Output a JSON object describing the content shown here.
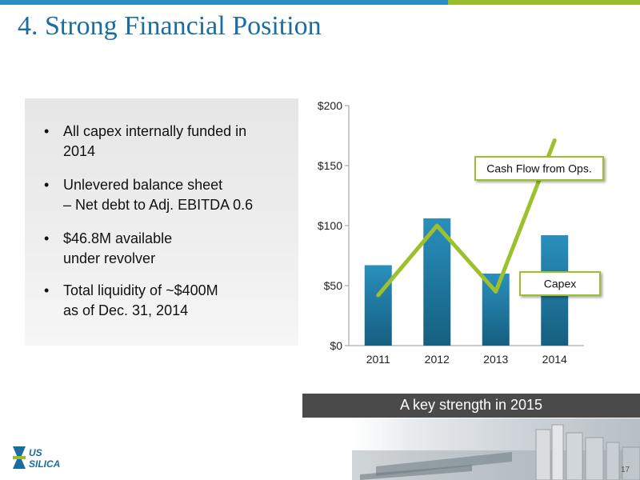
{
  "slide": {
    "title": "4. Strong Financial Position",
    "page_number": "17",
    "banner": "A key strength in 2015"
  },
  "logo": {
    "line1": "US",
    "line2": "SILICA"
  },
  "bullets": [
    {
      "lines": [
        "All capex internally funded in",
        "2014"
      ]
    },
    {
      "lines": [
        "Unlevered balance sheet",
        "– Net debt to Adj. EBITDA 0.6"
      ]
    },
    {
      "lines": [
        "$46.8M available",
        "under revolver"
      ]
    },
    {
      "lines": [
        "Total liquidity of ~$400M",
        "as of Dec. 31, 2014"
      ]
    }
  ],
  "chart_data": {
    "type": "bar",
    "categories": [
      "2011",
      "2012",
      "2013",
      "2014"
    ],
    "series": [
      {
        "name": "Capex",
        "type": "bar",
        "values": [
          67,
          106,
          60,
          92
        ]
      },
      {
        "name": "Cash Flow from Ops.",
        "type": "line",
        "values": [
          42,
          100,
          45,
          171
        ]
      }
    ],
    "ylim": [
      0,
      200
    ],
    "yticks": [
      0,
      50,
      100,
      150,
      200
    ],
    "ytick_labels": [
      "$0",
      "$50",
      "$100",
      "$150",
      "$200"
    ],
    "grid": false,
    "colors": {
      "bar": "#2a8fbd",
      "bar_dark": "#155f80",
      "line": "#9dc12c"
    }
  }
}
